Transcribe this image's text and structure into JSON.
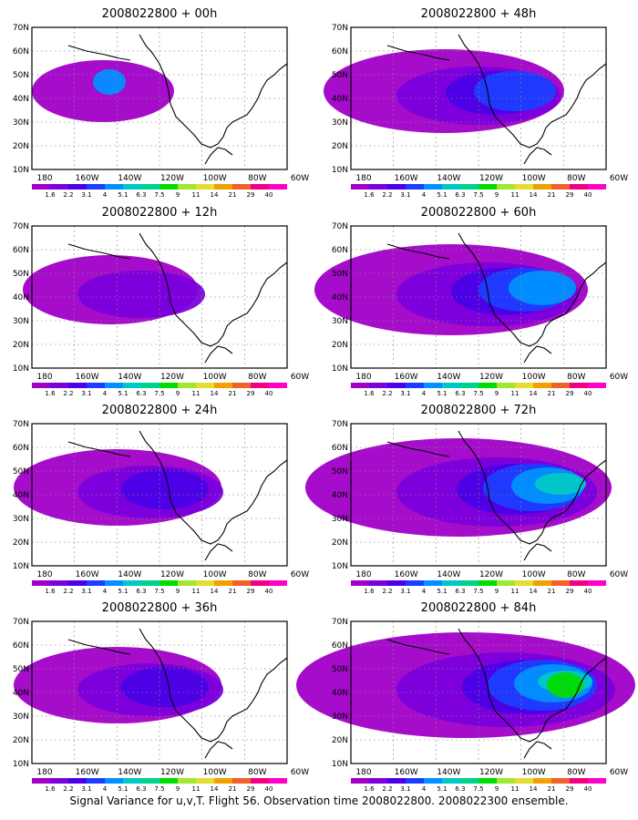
{
  "panels": [
    {
      "title": "2008022800 + 00h",
      "level": 1
    },
    {
      "title": "2008022800 + 48h",
      "level": 4
    },
    {
      "title": "2008022800 + 12h",
      "level": 2
    },
    {
      "title": "2008022800 + 60h",
      "level": 5
    },
    {
      "title": "2008022800 + 24h",
      "level": 3
    },
    {
      "title": "2008022800 + 72h",
      "level": 6
    },
    {
      "title": "2008022800 + 36h",
      "level": 3
    },
    {
      "title": "2008022800 + 84h",
      "level": 7
    }
  ],
  "lat_labels": [
    "70N",
    "60N",
    "50N",
    "40N",
    "30N",
    "20N",
    "10N"
  ],
  "lon_labels": [
    "180",
    "160W",
    "140W",
    "120W",
    "100W",
    "80W",
    "60W"
  ],
  "colorbar": {
    "labels": [
      "1.6",
      "2.2",
      "3.1",
      "4",
      "5.1",
      "6.3",
      "7.5",
      "9",
      "11",
      "14",
      "21",
      "29",
      "40"
    ],
    "colors": [
      "#a000c8",
      "#7a00dc",
      "#4b00e6",
      "#1e3cff",
      "#0090ff",
      "#00c8c8",
      "#00d28c",
      "#00dc00",
      "#a0e632",
      "#e6dc32",
      "#f0a000",
      "#f06028",
      "#f00082",
      "#ff00c8"
    ]
  },
  "footer": "Signal Variance for u,v,T. Flight 56. Observation time 2008022800. 2008022300 ensemble."
}
